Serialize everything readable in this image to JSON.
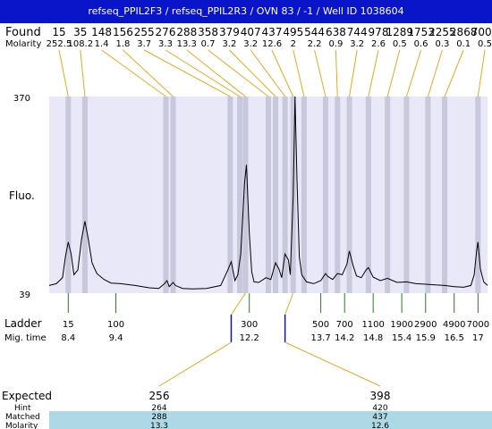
{
  "title": "refseq_PPIL2F3 / refseq_PPIL2R3 / OVN 83 / -1 / Well ID 1038604",
  "labels": {
    "found": "Found",
    "molarity": "Molarity",
    "fluo": "Fluo.",
    "ladder": "Ladder",
    "mig_time": "Mig. time",
    "expected": "Expected",
    "hint": "Hint",
    "matched": "Matched",
    "molarity_bottom": "Molarity"
  },
  "colors": {
    "title_bg": "#0a14c8",
    "plot_bg": "#e8e8f8",
    "peak_band": "#c8c8dc",
    "connector": "#e8a820",
    "ladder_tick": "#2a7a2a",
    "expected_marker": "#1010c0",
    "matched_band": "#add8e6",
    "trace": "#000000"
  },
  "chart_data": {
    "type": "line",
    "y_axis_ticks": [
      "370",
      "39"
    ],
    "ylim": [
      39,
      370
    ],
    "found_peaks": [
      {
        "size": "15",
        "molarity": "252.5",
        "time": 8.4
      },
      {
        "size": "35",
        "molarity": "108.2",
        "time": 8.75
      },
      {
        "size": "148",
        "molarity": "1.4",
        "time": 10.45
      },
      {
        "size": "156",
        "molarity": "1.8",
        "time": 10.6
      },
      {
        "size": "255",
        "molarity": "3.7",
        "time": 11.8
      },
      {
        "size": "276",
        "molarity": "3.3",
        "time": 12.0
      },
      {
        "size": "288",
        "molarity": "13.3",
        "time": 12.12
      },
      {
        "size": "358",
        "molarity": "0.7",
        "time": 12.6
      },
      {
        "size": "379",
        "molarity": "3.2",
        "time": 12.75
      },
      {
        "size": "407",
        "molarity": "3.2",
        "time": 12.95
      },
      {
        "size": "437",
        "molarity": "12.6",
        "time": 13.12
      },
      {
        "size": "495",
        "molarity": "2",
        "time": 13.35
      },
      {
        "size": "544",
        "molarity": "2.2",
        "time": 13.8
      },
      {
        "size": "638",
        "molarity": "0.9",
        "time": 14.05
      },
      {
        "size": "744",
        "molarity": "3.2",
        "time": 14.3
      },
      {
        "size": "978",
        "molarity": "2.6",
        "time": 14.7
      },
      {
        "size": "1289",
        "molarity": "0.5",
        "time": 15.1
      },
      {
        "size": "1753",
        "molarity": "0.6",
        "time": 15.5
      },
      {
        "size": "2255",
        "molarity": "0.3",
        "time": 15.95
      },
      {
        "size": "2868",
        "molarity": "0.1",
        "time": 16.3
      },
      {
        "size": "7000",
        "molarity": "0.5",
        "time": 17.0
      }
    ],
    "ladder": [
      {
        "size": "15",
        "time": "8.4",
        "t": 8.4
      },
      {
        "size": "100",
        "time": "9.4",
        "t": 9.4
      },
      {
        "size": "300",
        "time": "12.2",
        "t": 12.2
      },
      {
        "size": "500",
        "time": "13.7",
        "t": 13.7
      },
      {
        "size": "700",
        "time": "14.2",
        "t": 14.2
      },
      {
        "size": "1100",
        "time": "14.8",
        "t": 14.8
      },
      {
        "size": "1900",
        "time": "15.4",
        "t": 15.4
      },
      {
        "size": "2900",
        "time": "15.9",
        "t": 15.9
      },
      {
        "size": "4900",
        "time": "16.5",
        "t": 16.5
      },
      {
        "size": "7000",
        "time": "17",
        "t": 17.0
      }
    ],
    "expected": [
      {
        "expected": "256",
        "hint": "264",
        "matched": "288",
        "molarity": "13.3",
        "time": 11.82,
        "matched_time": 12.12
      },
      {
        "expected": "398",
        "hint": "420",
        "matched": "437",
        "molarity": "12.6",
        "time": 12.95,
        "matched_time": 13.12
      }
    ],
    "trace": [
      [
        8.0,
        52
      ],
      [
        8.15,
        55
      ],
      [
        8.28,
        65
      ],
      [
        8.34,
        100
      ],
      [
        8.4,
        125
      ],
      [
        8.46,
        105
      ],
      [
        8.52,
        70
      ],
      [
        8.6,
        78
      ],
      [
        8.68,
        130
      ],
      [
        8.75,
        160
      ],
      [
        8.82,
        130
      ],
      [
        8.9,
        90
      ],
      [
        9.0,
        72
      ],
      [
        9.15,
        62
      ],
      [
        9.3,
        56
      ],
      [
        9.5,
        55
      ],
      [
        9.8,
        52
      ],
      [
        10.1,
        48
      ],
      [
        10.3,
        47
      ],
      [
        10.42,
        55
      ],
      [
        10.47,
        60
      ],
      [
        10.52,
        50
      ],
      [
        10.6,
        57
      ],
      [
        10.65,
        52
      ],
      [
        10.8,
        47
      ],
      [
        11.0,
        46
      ],
      [
        11.3,
        47
      ],
      [
        11.6,
        52
      ],
      [
        11.75,
        78
      ],
      [
        11.82,
        92
      ],
      [
        11.9,
        60
      ],
      [
        11.96,
        70
      ],
      [
        12.02,
        105
      ],
      [
        12.1,
        225
      ],
      [
        12.14,
        255
      ],
      [
        12.2,
        140
      ],
      [
        12.25,
        75
      ],
      [
        12.3,
        58
      ],
      [
        12.4,
        57
      ],
      [
        12.55,
        65
      ],
      [
        12.65,
        62
      ],
      [
        12.75,
        90
      ],
      [
        12.82,
        80
      ],
      [
        12.88,
        65
      ],
      [
        12.95,
        105
      ],
      [
        13.02,
        95
      ],
      [
        13.06,
        70
      ],
      [
        13.12,
        200
      ],
      [
        13.16,
        370
      ],
      [
        13.2,
        230
      ],
      [
        13.25,
        100
      ],
      [
        13.3,
        70
      ],
      [
        13.4,
        58
      ],
      [
        13.55,
        55
      ],
      [
        13.7,
        60
      ],
      [
        13.8,
        72
      ],
      [
        13.85,
        67
      ],
      [
        13.95,
        62
      ],
      [
        14.05,
        72
      ],
      [
        14.15,
        70
      ],
      [
        14.25,
        88
      ],
      [
        14.3,
        110
      ],
      [
        14.38,
        85
      ],
      [
        14.45,
        68
      ],
      [
        14.55,
        65
      ],
      [
        14.65,
        78
      ],
      [
        14.7,
        82
      ],
      [
        14.8,
        66
      ],
      [
        14.95,
        60
      ],
      [
        15.1,
        64
      ],
      [
        15.3,
        57
      ],
      [
        15.5,
        58
      ],
      [
        15.7,
        55
      ],
      [
        15.9,
        54
      ],
      [
        16.1,
        53
      ],
      [
        16.3,
        52
      ],
      [
        16.5,
        50
      ],
      [
        16.7,
        49
      ],
      [
        16.85,
        52
      ],
      [
        16.92,
        70
      ],
      [
        16.97,
        110
      ],
      [
        17.0,
        125
      ],
      [
        17.05,
        80
      ],
      [
        17.12,
        58
      ],
      [
        17.2,
        52
      ]
    ]
  }
}
